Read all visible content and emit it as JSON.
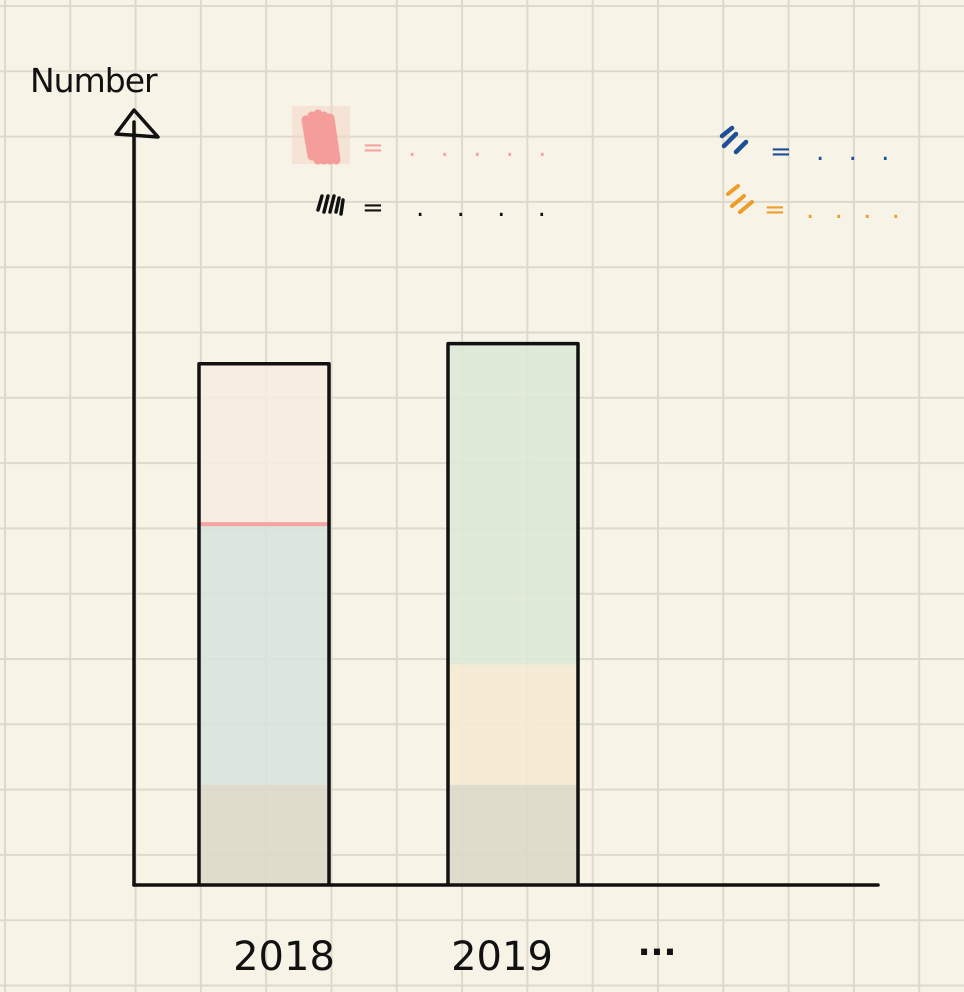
{
  "chart_data": {
    "type": "bar",
    "stacked": true,
    "ylabel": "Number",
    "categories": [
      "2018",
      "2019"
    ],
    "trailing_tick": "...",
    "grid": true,
    "legend": [
      {
        "swatch_color": "#f5a4a1",
        "text": "= . . . . ."
      },
      {
        "swatch_color": "#111111",
        "text": "= . . . ."
      },
      {
        "swatch_color": "#1d4f94",
        "text": "= . . ."
      },
      {
        "swatch_color": "#ef9c2b",
        "text": "= . . . ."
      }
    ],
    "series": [
      {
        "color": "#ddd9ca",
        "values": [
          2.5,
          2.5
        ]
      },
      {
        "color": "#d9e3de",
        "values": [
          6.5,
          0
        ]
      },
      {
        "color": "#f5ead4",
        "values": [
          0,
          3
        ]
      },
      {
        "color": "#f6ebdf",
        "values": [
          4,
          0
        ]
      },
      {
        "color": "#dde8d7",
        "values": [
          0,
          8
        ]
      }
    ],
    "divider_color": "#f5a4a1",
    "ylim": [
      0,
      15
    ]
  }
}
